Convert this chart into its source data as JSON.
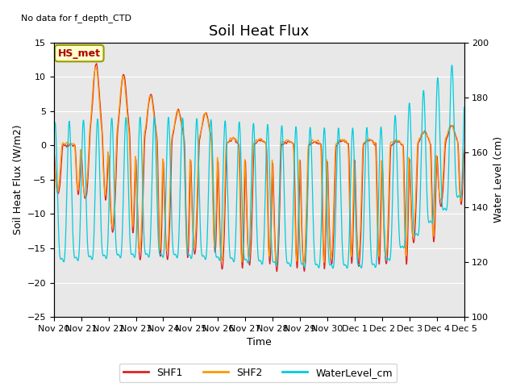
{
  "title": "Soil Heat Flux",
  "ylabel_left": "Soil Heat Flux (W/m2)",
  "ylabel_right": "Water Level (cm)",
  "xlabel": "Time",
  "ylim_left": [
    -25,
    15
  ],
  "ylim_right": [
    100,
    200
  ],
  "bg_color": "#e8e8e8",
  "fig_color": "#ffffff",
  "annotation_text": "HS_met",
  "no_data_text": "No data for f_depth_CTD",
  "legend_labels": [
    "SHF1",
    "SHF2",
    "WaterLevel_cm"
  ],
  "line_colors": [
    "#dd2222",
    "#ff9900",
    "#00ccdd"
  ],
  "xtick_labels": [
    "Nov 20",
    "Nov 21",
    "Nov 22",
    "Nov 23",
    "Nov 24",
    "Nov 25",
    "Nov 26",
    "Nov 27",
    "Nov 28",
    "Nov 29",
    "Nov 30",
    "Dec 1",
    "Dec 2",
    "Dec 3",
    "Dec 4",
    "Dec 5"
  ],
  "title_fontsize": 13,
  "axis_fontsize": 9,
  "tick_fontsize": 8
}
